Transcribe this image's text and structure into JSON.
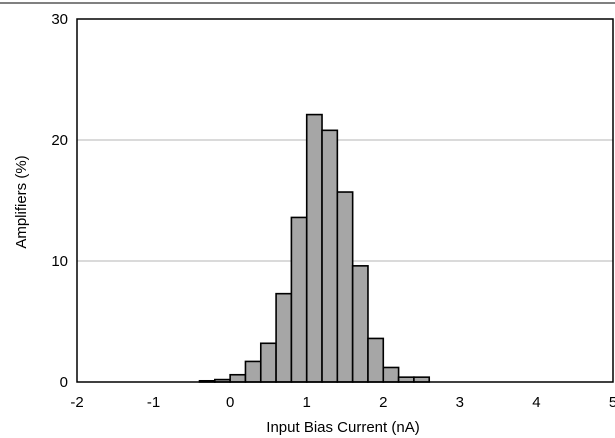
{
  "chart_data": {
    "type": "bar",
    "title": "",
    "xlabel": "Input Bias Current (nA)",
    "ylabel": "Amplifiers (%)",
    "xlim": [
      -2,
      5
    ],
    "ylim": [
      0,
      30
    ],
    "x_ticks": [
      -2,
      -1,
      0,
      1,
      2,
      3,
      4,
      5
    ],
    "y_ticks": [
      0,
      10,
      20,
      30
    ],
    "grid": "horizontal",
    "bin_width": 0.2,
    "bins": [
      {
        "x_start": -0.4,
        "value": 0.1
      },
      {
        "x_start": -0.2,
        "value": 0.2
      },
      {
        "x_start": 0.0,
        "value": 0.6
      },
      {
        "x_start": 0.2,
        "value": 1.7
      },
      {
        "x_start": 0.4,
        "value": 3.2
      },
      {
        "x_start": 0.6,
        "value": 7.3
      },
      {
        "x_start": 0.8,
        "value": 13.6
      },
      {
        "x_start": 1.0,
        "value": 22.1
      },
      {
        "x_start": 1.2,
        "value": 20.8
      },
      {
        "x_start": 1.4,
        "value": 15.7
      },
      {
        "x_start": 1.6,
        "value": 9.6
      },
      {
        "x_start": 1.8,
        "value": 3.6
      },
      {
        "x_start": 2.0,
        "value": 1.2
      },
      {
        "x_start": 2.2,
        "value": 0.4
      },
      {
        "x_start": 2.4,
        "value": 0.4
      }
    ],
    "colors": {
      "bar_fill": "#a6a6a6",
      "bar_edge": "#000000",
      "grid": "#b4b4b4"
    }
  }
}
